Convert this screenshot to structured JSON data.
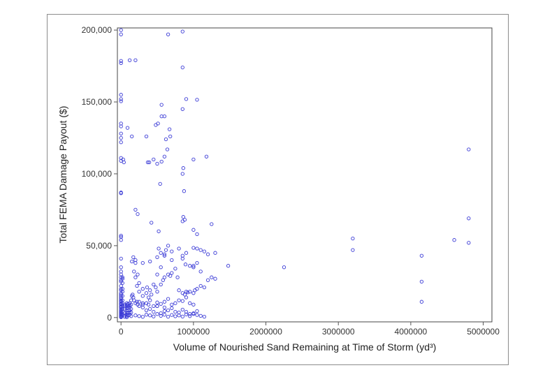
{
  "chart_data": {
    "type": "scatter",
    "title": "",
    "xlabel": "Volume of Nourished Sand Remaining at Time of Storm (yd³)",
    "ylabel": "Total FEMA Damage Payout ($)",
    "xlim": [
      -50000,
      5120000
    ],
    "ylim": [
      -3000,
      201500
    ],
    "x_ticks": [
      0,
      1000000,
      2000000,
      3000000,
      4000000,
      5000000
    ],
    "x_tick_labels": [
      "0",
      "1000000",
      "2000000",
      "3000000",
      "4000000",
      "5000000"
    ],
    "y_ticks": [
      0,
      50000,
      100000,
      150000,
      200000
    ],
    "y_tick_labels": [
      "0",
      "50,000",
      "100,000",
      "150,000",
      "200,000"
    ],
    "grid": false,
    "legend": "none",
    "point_color": "#3b3bd6",
    "series": [
      {
        "x": [
          0,
          0,
          0,
          0,
          0,
          0,
          0,
          0,
          0,
          0,
          0,
          0,
          0,
          0,
          0,
          0,
          0,
          0,
          0,
          0,
          0,
          0,
          0,
          0,
          0,
          0,
          0,
          0,
          0,
          0,
          0,
          0,
          0,
          0,
          0,
          0,
          0,
          0,
          0,
          0,
          0,
          0,
          0,
          0,
          0,
          0,
          0,
          0,
          0,
          0,
          0,
          0,
          0,
          0,
          20000,
          20000,
          20000,
          20000,
          20000,
          20000,
          20000,
          20000,
          20000,
          20000,
          20000,
          20000,
          50000,
          50000,
          50000,
          50000,
          50000,
          50000,
          80000,
          80000,
          80000,
          80000,
          80000,
          80000,
          80000,
          80000,
          80000,
          100000,
          100000,
          100000,
          100000,
          100000,
          100000,
          120000,
          120000,
          120000,
          120000,
          120000,
          120000,
          140000,
          140000,
          140000,
          140000,
          140000,
          150000,
          160000,
          170000,
          180000,
          200000,
          220000,
          230000,
          250000,
          300000,
          380000,
          500000,
          600000,
          150000,
          170000,
          180000,
          200000,
          200000,
          220000,
          250000,
          230000,
          250000,
          300000,
          300000,
          350000,
          360000,
          380000,
          400000,
          420000,
          450000,
          480000,
          500000,
          550000,
          580000,
          600000,
          650000,
          680000,
          700000,
          750000,
          780000,
          800000,
          850000,
          880000,
          900000,
          920000,
          950000,
          1000000,
          1020000,
          1050000,
          1100000,
          1150000,
          1200000,
          1250000,
          1300000,
          1000000,
          1050000,
          300000,
          350000,
          400000,
          450000,
          500000,
          550000,
          600000,
          650000,
          700000,
          750000,
          800000,
          850000,
          900000,
          950000,
          1000000,
          1050000,
          200000,
          250000,
          300000,
          350000,
          400000,
          450000,
          500000,
          550000,
          600000,
          650000,
          700000,
          750000,
          800000,
          850000,
          900000,
          950000,
          1000000,
          1050000,
          1100000,
          1150000,
          250000,
          300000,
          350000,
          400000,
          450000,
          500000,
          550000,
          600000,
          650000,
          700000,
          750000,
          800000,
          850000,
          900000,
          950000,
          1000000,
          200000,
          300000,
          400000,
          500000,
          600000,
          700000,
          800000,
          900000,
          1000000,
          1100000,
          1200000,
          1300000,
          950000,
          1000000,
          500000,
          520000,
          550000,
          550000,
          600000,
          620000,
          650000,
          700000,
          850000,
          850000,
          1050000,
          1150000,
          1250000,
          1100000,
          1480000,
          2250000,
          3200000,
          3200000,
          370000,
          390000,
          420000,
          520000,
          560000,
          600000,
          640000,
          670000,
          850000,
          860000,
          900000,
          1000000,
          1050000,
          1180000,
          860000,
          850000,
          30000,
          40000,
          90000,
          150000,
          200000,
          230000,
          350000,
          450000,
          500000,
          540000,
          560000,
          600000,
          850000,
          880000,
          1000000,
          1050000,
          0,
          120000,
          200000,
          510000,
          480000,
          560000,
          620000,
          650000,
          680000,
          850000,
          850000,
          870000,
          890000,
          4150000,
          4150000,
          4150000,
          4600000,
          4800000,
          4800000,
          4800000
        ],
        "y": [
          200000,
          177000,
          178500,
          155000,
          152000,
          150500,
          135000,
          133000,
          128000,
          125000,
          122000,
          111000,
          109000,
          87000,
          86500,
          57000,
          56000,
          54000,
          41000,
          35000,
          32000,
          30000,
          28000,
          26000,
          25000,
          22000,
          20000,
          19000,
          17000,
          16000,
          15000,
          14000,
          13000,
          12000,
          11000,
          10000,
          9000,
          8000,
          7000,
          6000,
          5000,
          4500,
          4000,
          3500,
          3000,
          2500,
          2000,
          1500,
          1000,
          500,
          200,
          7500,
          9500,
          11500,
          28000,
          27000,
          24000,
          20000,
          18000,
          15000,
          12000,
          10000,
          8000,
          6000,
          4000,
          2000,
          9000,
          8000,
          6000,
          3000,
          1500,
          500,
          10000,
          9000,
          8000,
          6500,
          5000,
          3500,
          2000,
          1000,
          300,
          9500,
          8000,
          7000,
          5000,
          3000,
          1500,
          10000,
          8500,
          7000,
          5000,
          3500,
          2000,
          12000,
          9000,
          6000,
          3500,
          1000,
          15000,
          16000,
          14000,
          12000,
          10000,
          11000,
          9000,
          8000,
          10000,
          9000,
          8000,
          7000,
          39000,
          42000,
          32000,
          38000,
          28000,
          22000,
          24000,
          30000,
          18000,
          20000,
          15000,
          17000,
          21000,
          14000,
          19000,
          16000,
          23000,
          21000,
          18000,
          23000,
          26000,
          28000,
          30000,
          29000,
          31000,
          34000,
          28000,
          19000,
          17000,
          16000,
          18000,
          17500,
          18000,
          17000,
          19000,
          20000,
          22000,
          21000,
          26000,
          28000,
          27000,
          36000,
          38000,
          7000,
          5000,
          6000,
          4000,
          8000,
          3000,
          4500,
          5000,
          6500,
          4000,
          3500,
          5500,
          4000,
          2500,
          3000,
          4500,
          1500,
          1000,
          500,
          2000,
          1500,
          800,
          2500,
          1200,
          2000,
          600,
          1800,
          900,
          1500,
          700,
          2200,
          1000,
          2500,
          1800,
          1200,
          600,
          11000,
          9000,
          10000,
          12000,
          8000,
          10500,
          9500,
          11000,
          13000,
          9000,
          10000,
          12000,
          11500,
          14000,
          10000,
          9000,
          40000,
          38000,
          39000,
          42000,
          44000,
          46000,
          48000,
          45000,
          48500,
          47000,
          44000,
          45000,
          36000,
          35000,
          30000,
          48000,
          45000,
          35000,
          43000,
          47000,
          50000,
          40000,
          41000,
          43000,
          48000,
          46000,
          65000,
          32000,
          36000,
          35000,
          55000,
          47000,
          108000,
          108000,
          66000,
          60000,
          108500,
          112000,
          117000,
          131000,
          100000,
          104000,
          152000,
          110000,
          151500,
          112000,
          70000,
          67000,
          110000,
          108000,
          132000,
          126000,
          75000,
          72000,
          126000,
          110000,
          107000,
          93000,
          148000,
          140000,
          145000,
          68000,
          61000,
          58000,
          197000,
          179000,
          179000,
          135000,
          134000,
          140000,
          124000,
          197000,
          126000,
          174000,
          199000,
          88000,
          37000,
          43000,
          25000,
          11000,
          54000,
          117000,
          69000,
          52000
        ]
      }
    ]
  }
}
